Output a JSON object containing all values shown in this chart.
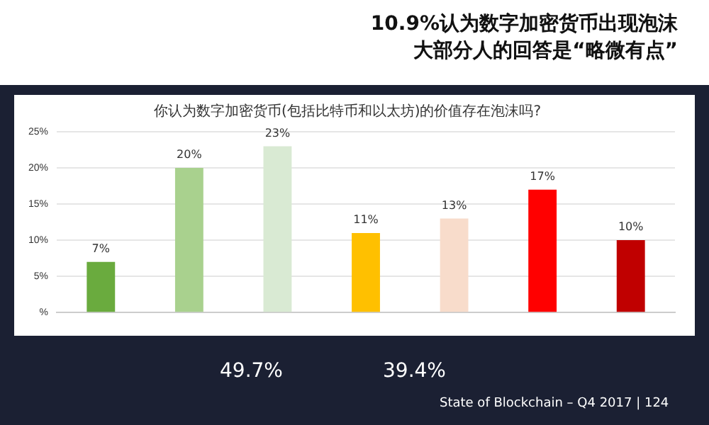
{
  "chart_data": {
    "type": "bar",
    "title": "10.9%认为数字加密货币出现泡沫大部分人的回答是“略微有点”",
    "subtitle": "你认为数字加密货币(包括比特币和以太坊)的价值存在泡沫吗?",
    "categories": [
      null,
      null,
      null,
      null,
      null,
      null,
      null
    ],
    "values": [
      7,
      20,
      23,
      11,
      13,
      17,
      10
    ],
    "colors": [
      "#6aab3e",
      "#a9d18e",
      "#d9ead3",
      "#ffc000",
      "#f8dccb",
      "#ff0000",
      "#c00000"
    ],
    "ylim": [
      0,
      25
    ],
    "yticks": [
      {
        "value": 0,
        "label": "%"
      },
      {
        "value": 5,
        "label": "5%"
      },
      {
        "value": 10,
        "label": "10%"
      },
      {
        "value": 15,
        "label": "15%"
      },
      {
        "value": 20,
        "label": "20%"
      },
      {
        "value": 25,
        "label": "25%"
      }
    ],
    "value_labels": [
      "7%",
      "20%",
      "23%",
      "11%",
      "13%",
      "17%",
      "10%"
    ],
    "grid": "y",
    "annotations": [
      "49.7%",
      "39.4%",
      "State of Blockchain – Q4 2017 | 124"
    ]
  }
}
